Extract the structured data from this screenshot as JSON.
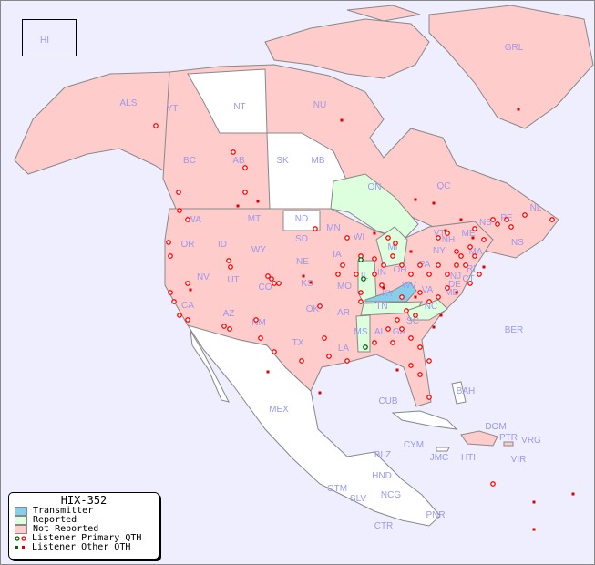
{
  "map_title": "HIX-352",
  "colors": {
    "background": "#eeeeff",
    "transmitter": "#87ceeb",
    "reported": "#ddffdd",
    "not_reported": "#ffcccc",
    "unlisted": "#ffffff",
    "border": "#888888",
    "label": "#9999ee",
    "primary_marker": "#ff0000",
    "other_marker": "#dd0000",
    "reported_marker": "#006600"
  },
  "legend": {
    "title": "HIX-352",
    "items": [
      {
        "label": "Transmitter",
        "color": "#87ceeb"
      },
      {
        "label": "Reported",
        "color": "#ddffdd"
      },
      {
        "label": "Not Reported",
        "color": "#ffcccc"
      },
      {
        "label": "Listener Primary QTH",
        "marker": "circle"
      },
      {
        "label": "Listener Other QTH",
        "marker": "square"
      }
    ]
  },
  "transmitter_region": "KY",
  "reported_regions": [
    "ON",
    "MI",
    "IL",
    "TN",
    "MS",
    "NC"
  ],
  "region_labels": [
    "HI",
    "ALS",
    "YT",
    "NT",
    "NU",
    "GRL",
    "BC",
    "AB",
    "SK",
    "MB",
    "ON",
    "QC",
    "NL",
    "NB",
    "PE",
    "NS",
    "WA",
    "OR",
    "ID",
    "MT",
    "WY",
    "ND",
    "SD",
    "NE",
    "MN",
    "WI",
    "IA",
    "IL",
    "IN",
    "MI",
    "OH",
    "PA",
    "NY",
    "VT",
    "NH",
    "ME",
    "MA",
    "RI",
    "CT",
    "NJ",
    "DE",
    "MD",
    "VA",
    "WV",
    "KY",
    "TN",
    "NC",
    "SC",
    "GA",
    "AL",
    "MS",
    "LA",
    "AR",
    "MO",
    "KS",
    "OK",
    "TX",
    "NM",
    "AZ",
    "UT",
    "CO",
    "NV",
    "CA",
    "BER",
    "BAH",
    "CUB",
    "MEX",
    "DOM",
    "PTR",
    "VRG",
    "CYM",
    "JMC",
    "HTI",
    "VIR",
    "BLZ",
    "HND",
    "GTM",
    "SLV",
    "NCG",
    "PNR",
    "CTR"
  ]
}
